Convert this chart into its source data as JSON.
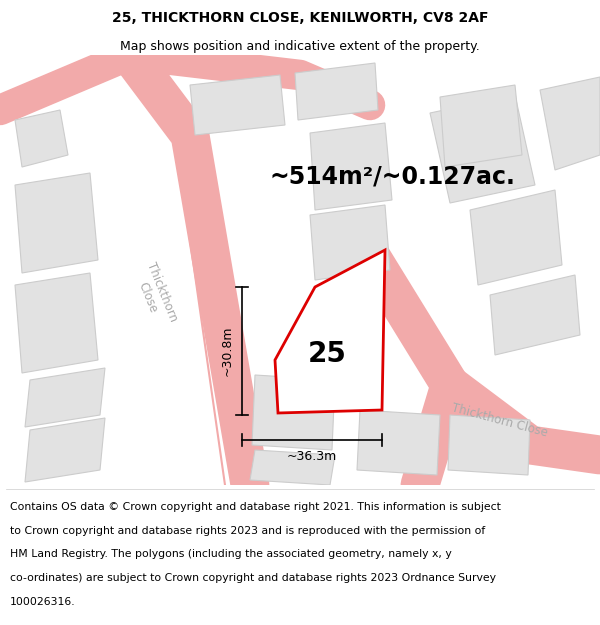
{
  "title_line1": "25, THICKTHORN CLOSE, KENILWORTH, CV8 2AF",
  "title_line2": "Map shows position and indicative extent of the property.",
  "area_text": "~514m²/~0.127ac.",
  "plot_number": "25",
  "dim_width": "~36.3m",
  "dim_height": "~30.8m",
  "footer_lines": [
    "Contains OS data © Crown copyright and database right 2021. This information is subject",
    "to Crown copyright and database rights 2023 and is reproduced with the permission of",
    "HM Land Registry. The polygons (including the associated geometry, namely x, y",
    "co-ordinates) are subject to Crown copyright and database rights 2023 Ordnance Survey",
    "100026316."
  ],
  "map_bg": "#f7f7f7",
  "plot_fill": "#ffffff",
  "plot_stroke": "#dd0000",
  "neighbor_fill": "#e2e2e2",
  "neighbor_stroke": "#cccccc",
  "road_fill": "#ffffff",
  "road_line_color": "#f2aaaa",
  "road_label_color": "#aaaaaa",
  "dim_color": "#000000",
  "title_fontsize": 10,
  "subtitle_fontsize": 9,
  "area_fontsize": 17,
  "number_fontsize": 20,
  "footer_fontsize": 7.8,
  "road_label_fontsize": 8.5
}
